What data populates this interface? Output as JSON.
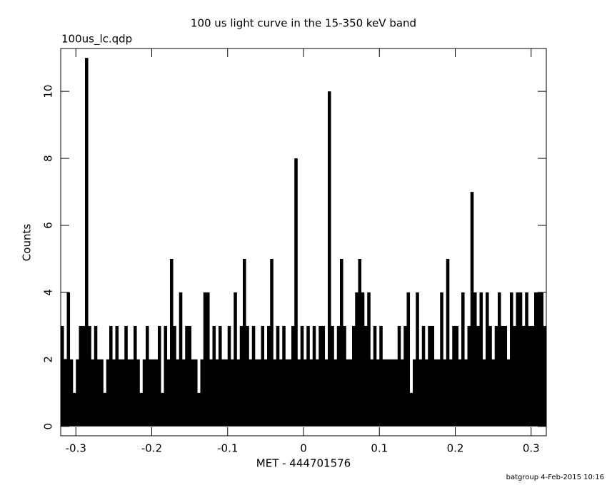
{
  "chart_data": {
    "type": "histogram",
    "title": "100 us light curve in the 15-350 keV band",
    "subtitle": "100us_lc.qdp",
    "xlabel": "MET - 444701576",
    "ylabel": "Counts",
    "footer": "batgroup  4-Feb-2015 10:16",
    "xlim": [
      -0.32,
      0.32
    ],
    "ylim": [
      -0.28,
      11.28
    ],
    "xticks": [
      -0.3,
      -0.2,
      -0.1,
      0,
      0.1,
      0.2,
      0.3
    ],
    "yticks": [
      0,
      2,
      4,
      6,
      8,
      10
    ],
    "color": "#000000",
    "x": [
      -0.318,
      -0.314,
      -0.31,
      -0.306,
      -0.302,
      -0.298,
      -0.294,
      -0.29,
      -0.286,
      -0.282,
      -0.278,
      -0.274,
      -0.27,
      -0.266,
      -0.262,
      -0.258,
      -0.254,
      -0.25,
      -0.246,
      -0.242,
      -0.238,
      -0.234,
      -0.23,
      -0.226,
      -0.222,
      -0.218,
      -0.214,
      -0.21,
      -0.206,
      -0.202,
      -0.198,
      -0.194,
      -0.19,
      -0.186,
      -0.182,
      -0.178,
      -0.174,
      -0.17,
      -0.166,
      -0.162,
      -0.158,
      -0.154,
      -0.15,
      -0.146,
      -0.142,
      -0.138,
      -0.134,
      -0.13,
      -0.126,
      -0.122,
      -0.118,
      -0.114,
      -0.11,
      -0.106,
      -0.102,
      -0.098,
      -0.094,
      -0.09,
      -0.086,
      -0.082,
      -0.078,
      -0.074,
      -0.07,
      -0.066,
      -0.062,
      -0.058,
      -0.054,
      -0.05,
      -0.046,
      -0.042,
      -0.038,
      -0.034,
      -0.03,
      -0.026,
      -0.022,
      -0.018,
      -0.014,
      -0.01,
      -0.006,
      -0.002,
      0.002,
      0.006,
      0.01,
      0.014,
      0.018,
      0.022,
      0.026,
      0.03,
      0.034,
      0.038,
      0.042,
      0.046,
      0.05,
      0.054,
      0.058,
      0.062,
      0.066,
      0.07,
      0.074,
      0.078,
      0.082,
      0.086,
      0.09,
      0.094,
      0.098,
      0.102,
      0.106,
      0.11,
      0.114,
      0.118,
      0.122,
      0.126,
      0.13,
      0.134,
      0.138,
      0.142,
      0.146,
      0.15,
      0.154,
      0.158,
      0.162,
      0.166,
      0.17,
      0.174,
      0.178,
      0.182,
      0.186,
      0.19,
      0.194,
      0.198,
      0.202,
      0.206,
      0.21,
      0.214,
      0.218,
      0.222,
      0.226,
      0.23,
      0.234,
      0.238,
      0.242,
      0.246,
      0.25,
      0.254,
      0.258,
      0.262,
      0.266,
      0.27,
      0.274,
      0.278,
      0.282,
      0.286,
      0.29,
      0.294,
      0.298,
      0.302,
      0.306,
      0.31,
      0.314,
      0.318
    ],
    "values": [
      3,
      2,
      4,
      2,
      1,
      2,
      3,
      3,
      11,
      3,
      2,
      3,
      2,
      2,
      1,
      2,
      3,
      2,
      3,
      2,
      2,
      3,
      2,
      2,
      3,
      2,
      1,
      2,
      3,
      2,
      2,
      2,
      3,
      1,
      3,
      2,
      5,
      3,
      2,
      4,
      2,
      3,
      3,
      2,
      2,
      1,
      2,
      4,
      4,
      2,
      3,
      2,
      3,
      2,
      2,
      3,
      2,
      4,
      2,
      3,
      5,
      3,
      2,
      3,
      2,
      2,
      3,
      2,
      3,
      5,
      2,
      3,
      2,
      3,
      2,
      2,
      3,
      8,
      2,
      3,
      2,
      3,
      2,
      3,
      2,
      3,
      3,
      2,
      10,
      3,
      2,
      3,
      5,
      3,
      2,
      2,
      3,
      4,
      5,
      4,
      3,
      4,
      2,
      3,
      2,
      3,
      2,
      2,
      2,
      2,
      2,
      3,
      2,
      3,
      4,
      1,
      2,
      4,
      2,
      3,
      2,
      3,
      3,
      2,
      2,
      4,
      2,
      5,
      2,
      3,
      3,
      2,
      4,
      2,
      3,
      7,
      4,
      3,
      4,
      2,
      4,
      3,
      2,
      3,
      4,
      3,
      3,
      2,
      4,
      3,
      4,
      4,
      3,
      4,
      3,
      3,
      4,
      4,
      4,
      3
    ]
  }
}
